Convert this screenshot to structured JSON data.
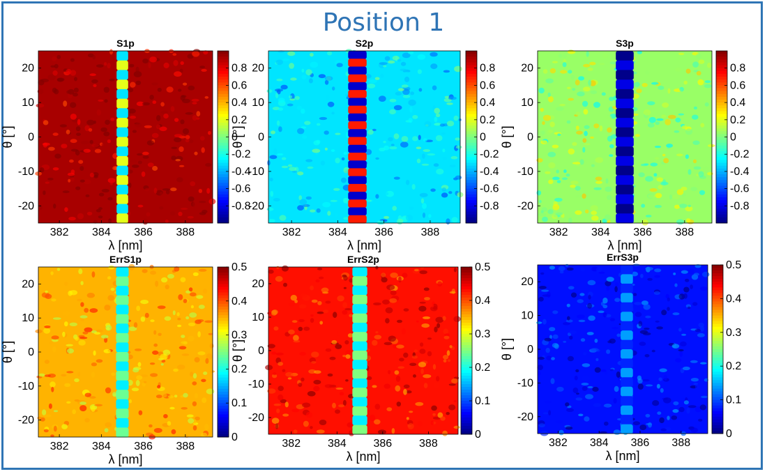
{
  "title": "Position 1",
  "chart_data": [
    {
      "type": "heatmap",
      "title": "S1p",
      "xlabel": "λ [nm]",
      "ylabel": "θ [°]",
      "xlim": [
        381,
        389.3
      ],
      "ylim": [
        -25,
        25
      ],
      "xticks": [
        "382",
        "384",
        "386",
        "388"
      ],
      "xtick_values": [
        382,
        384,
        386,
        388
      ],
      "yticks": [
        "20",
        "10",
        "0",
        "-10",
        "-20"
      ],
      "ytick_values": [
        20,
        10,
        0,
        -10,
        -20
      ],
      "colorbar_range": [
        -1,
        1
      ],
      "colorbar_ticks": [
        "0.8",
        "0.6",
        "0.4",
        "0.2",
        "0",
        "-0.2",
        "-0.4",
        "-0.6",
        "-0.8"
      ],
      "colorbar_tick_values": [
        0.8,
        0.6,
        0.4,
        0.2,
        0,
        -0.2,
        -0.4,
        -0.6,
        -0.8
      ],
      "colormap": "jet",
      "background_value": 0.92,
      "band_center_nm": 385.0,
      "band_width_nm": 0.55,
      "band_value_range": [
        -0.3,
        0.2
      ],
      "band_rows": 18
    },
    {
      "type": "heatmap",
      "title": "S2p",
      "xlabel": "λ [nm]",
      "ylabel": "θ [°]",
      "xlim": [
        381,
        389.3
      ],
      "ylim": [
        -25,
        25
      ],
      "xticks": [
        "382",
        "384",
        "386",
        "388"
      ],
      "xtick_values": [
        382,
        384,
        386,
        388
      ],
      "yticks": [
        "20",
        "10",
        "0",
        "-10",
        "-20"
      ],
      "ytick_values": [
        20,
        10,
        0,
        -10,
        -20
      ],
      "colorbar_range": [
        -1,
        1
      ],
      "colorbar_ticks": [
        "0.8",
        "0.6",
        "0.4",
        "0.2",
        "0",
        "-0.2",
        "-0.4",
        "-0.6",
        "-0.8"
      ],
      "colorbar_tick_values": [
        0.8,
        0.6,
        0.4,
        0.2,
        0,
        -0.2,
        -0.4,
        -0.6,
        -0.8
      ],
      "colormap": "jet",
      "background_value": -0.3,
      "band_center_nm": 384.85,
      "band_width_nm": 0.8,
      "band_value_range": [
        -0.85,
        0.7
      ],
      "band_rows": 22
    },
    {
      "type": "heatmap",
      "title": "S3p",
      "xlabel": "λ [nm]",
      "ylabel": "θ [°]",
      "xlim": [
        381,
        389.3
      ],
      "ylim": [
        -25,
        25
      ],
      "xticks": [
        "382",
        "384",
        "386",
        "388"
      ],
      "xtick_values": [
        382,
        384,
        386,
        388
      ],
      "yticks": [
        "20",
        "10",
        "0",
        "-10",
        "-20"
      ],
      "ytick_values": [
        20,
        10,
        0,
        -10,
        -20
      ],
      "colorbar_range": [
        -1,
        1
      ],
      "colorbar_ticks": [
        "0.8",
        "0.6",
        "0.4",
        "0.2",
        "0",
        "-0.2",
        "-0.4",
        "-0.6",
        "-0.8"
      ],
      "colorbar_tick_values": [
        0.8,
        0.6,
        0.4,
        0.2,
        0,
        -0.2,
        -0.4,
        -0.6,
        -0.8
      ],
      "colormap": "jet",
      "background_value": 0.05,
      "band_center_nm": 385.15,
      "band_width_nm": 0.85,
      "band_value_range": [
        -0.98,
        -0.8
      ],
      "band_rows": 18
    },
    {
      "type": "heatmap",
      "title": "ErrS1p",
      "xlabel": "λ [nm]",
      "ylabel": "θ [°]",
      "xlim": [
        381,
        389.3
      ],
      "ylim": [
        -25,
        25
      ],
      "xticks": [
        "382",
        "384",
        "386",
        "388"
      ],
      "xtick_values": [
        382,
        384,
        386,
        388
      ],
      "yticks": [
        "20",
        "10",
        "0",
        "-10",
        "-20"
      ],
      "ytick_values": [
        20,
        10,
        0,
        -10,
        -20
      ],
      "colorbar_range": [
        0,
        0.5
      ],
      "colorbar_ticks": [
        "0.5",
        "0.4",
        "0.3",
        "0.2",
        "0.1",
        "0"
      ],
      "colorbar_tick_values": [
        0.5,
        0.4,
        0.3,
        0.2,
        0.1,
        0
      ],
      "colormap": "jet",
      "background_value": 0.35,
      "band_center_nm": 385.0,
      "band_width_nm": 0.6,
      "band_value_range": [
        0.18,
        0.24
      ],
      "band_rows": 18
    },
    {
      "type": "heatmap",
      "title": "ErrS2p",
      "xlabel": "λ [nm]",
      "ylabel": "θ [°]",
      "xlim": [
        381,
        389.3
      ],
      "ylim": [
        -25,
        25
      ],
      "xticks": [
        "382",
        "384",
        "386",
        "388"
      ],
      "xtick_values": [
        382,
        384,
        386,
        388
      ],
      "yticks": [
        "20",
        "10",
        "0",
        "-10",
        "-20"
      ],
      "ytick_values": [
        20,
        10,
        0,
        -10,
        -20
      ],
      "colorbar_range": [
        0,
        0.5
      ],
      "colorbar_ticks": [
        "0.5",
        "0.4",
        "0.3",
        "0.2",
        "0.1",
        "0"
      ],
      "colorbar_tick_values": [
        0.5,
        0.4,
        0.3,
        0.2,
        0.1,
        0
      ],
      "colormap": "jet",
      "background_value": 0.43,
      "band_center_nm": 385.0,
      "band_width_nm": 0.65,
      "band_value_range": [
        0.18,
        0.25
      ],
      "band_rows": 18
    },
    {
      "type": "heatmap",
      "title": "ErrS3p",
      "xlabel": "λ [nm]",
      "ylabel": "θ [°]",
      "xlim": [
        381,
        389.3
      ],
      "ylim": [
        -25,
        25
      ],
      "xticks": [
        "382",
        "384",
        "386",
        "388"
      ],
      "xtick_values": [
        382,
        384,
        386,
        388
      ],
      "yticks": [
        "20",
        "10",
        "0",
        "-10",
        "-20"
      ],
      "ytick_values": [
        20,
        10,
        0,
        -10,
        -20
      ],
      "colorbar_range": [
        0,
        0.5
      ],
      "colorbar_ticks": [
        "0.5",
        "0.4",
        "0.3",
        "0.2",
        "0.1",
        "0"
      ],
      "colorbar_tick_values": [
        0.5,
        0.4,
        0.3,
        0.2,
        0.1,
        0
      ],
      "colormap": "jet",
      "background_value": 0.07,
      "band_center_nm": 385.35,
      "band_width_nm": 0.6,
      "band_value_range": [
        0.08,
        0.14
      ],
      "band_rows": 18
    }
  ]
}
